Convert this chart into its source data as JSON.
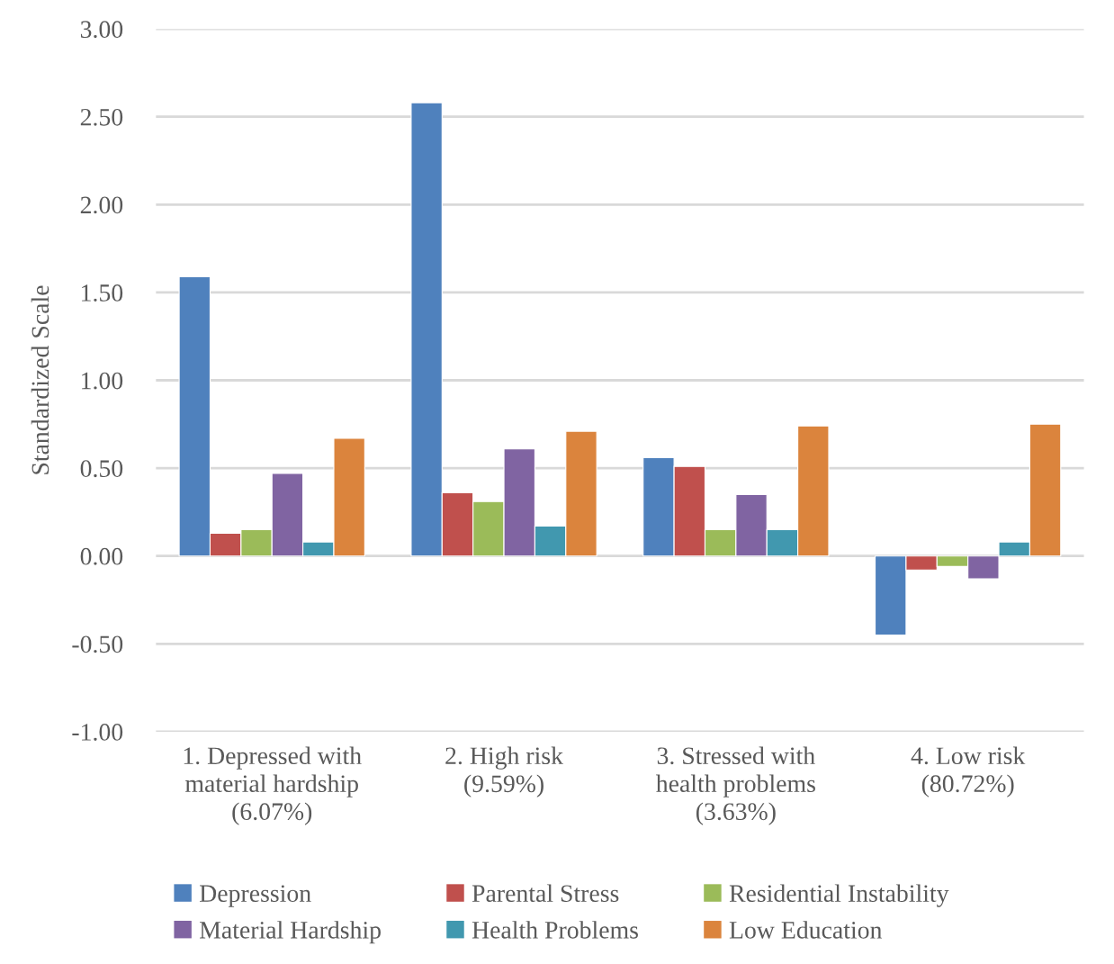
{
  "chart_data": {
    "type": "bar",
    "ylabel": "Standardized Scale",
    "categories": [
      "1. Depressed with\nmaterial hardship\n(6.07%)",
      "2. High risk\n(9.59%)",
      "3. Stressed with\nhealth problems\n(3.63%)",
      "4. Low risk\n(80.72%)"
    ],
    "series": [
      {
        "name": "Depression",
        "color": "#4f81bd",
        "values": [
          1.59,
          2.58,
          0.56,
          -0.45
        ]
      },
      {
        "name": "Parental Stress",
        "color": "#c0504d",
        "values": [
          0.13,
          0.36,
          0.51,
          -0.08
        ]
      },
      {
        "name": "Residential Instability",
        "color": "#9bbb59",
        "values": [
          0.15,
          0.31,
          0.15,
          -0.06
        ]
      },
      {
        "name": "Material Hardship",
        "color": "#8064a2",
        "values": [
          0.47,
          0.61,
          0.35,
          -0.13
        ]
      },
      {
        "name": "Health Problems",
        "color": "#4198af",
        "values": [
          0.08,
          0.17,
          0.15,
          0.08
        ]
      },
      {
        "name": "Low Education",
        "color": "#db843d",
        "values": [
          0.67,
          0.71,
          0.74,
          0.75
        ]
      }
    ],
    "ylim": [
      -1,
      3
    ],
    "yticks": [
      {
        "value": -1,
        "label": "-1.00"
      },
      {
        "value": -0.5,
        "label": "-0.50"
      },
      {
        "value": 0,
        "label": "0.00"
      },
      {
        "value": 0.5,
        "label": "0.50"
      },
      {
        "value": 1,
        "label": "1.00"
      },
      {
        "value": 1.5,
        "label": "1.50"
      },
      {
        "value": 2,
        "label": "2.00"
      },
      {
        "value": 2.5,
        "label": "2.50"
      },
      {
        "value": 3,
        "label": "3.00"
      }
    ],
    "grid": "y",
    "legend": "bottom"
  }
}
